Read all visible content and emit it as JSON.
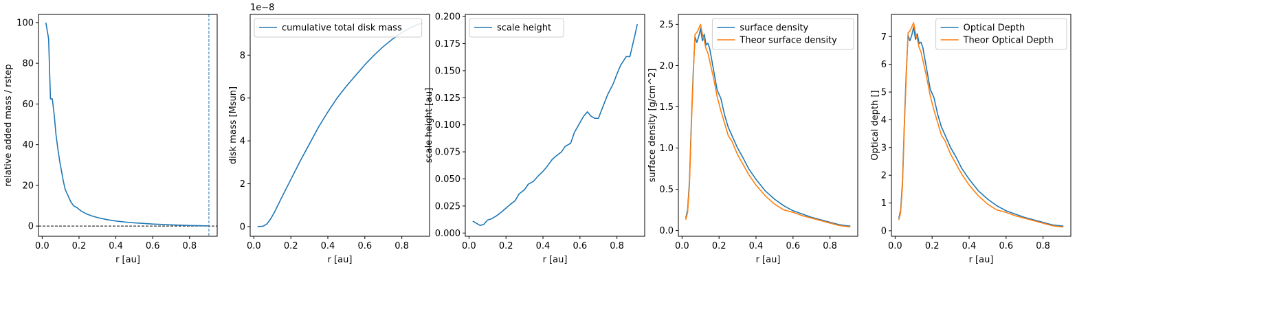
{
  "chart_data": [
    {
      "type": "line",
      "xlabel": "r [au]",
      "ylabel": "relative added mass / rstep",
      "xlim": [
        -0.02,
        0.95
      ],
      "ylim": [
        -5,
        104
      ],
      "xticks": [
        0.0,
        0.2,
        0.4,
        0.6,
        0.8
      ],
      "xtick_labels": [
        "0.0",
        "0.2",
        "0.4",
        "0.6",
        "0.8"
      ],
      "yticks": [
        0,
        20,
        40,
        60,
        80,
        100
      ],
      "ytick_labels": [
        "0",
        "20",
        "40",
        "60",
        "80",
        "100"
      ],
      "legend": null,
      "hlines": [
        {
          "y": 0,
          "style": "dashed",
          "color": "#000000"
        }
      ],
      "vlines": [
        {
          "x": 0.905,
          "style": "dashed",
          "color": "#1f77b4"
        }
      ],
      "series": [
        {
          "color": "#1f77b4",
          "x": [
            0.02,
            0.035,
            0.045,
            0.055,
            0.065,
            0.075,
            0.085,
            0.095,
            0.105,
            0.115,
            0.125,
            0.14,
            0.155,
            0.17,
            0.19,
            0.21,
            0.24,
            0.27,
            0.3,
            0.35,
            0.4,
            0.45,
            0.5,
            0.55,
            0.6,
            0.65,
            0.7,
            0.75,
            0.8,
            0.85,
            0.9
          ],
          "y": [
            100,
            92,
            62.5,
            62.5,
            55,
            45,
            38,
            32,
            27,
            22,
            18,
            15,
            12,
            10,
            9,
            7.5,
            6,
            5,
            4.2,
            3.2,
            2.5,
            2.0,
            1.6,
            1.3,
            1.0,
            0.8,
            0.6,
            0.45,
            0.3,
            0.2,
            0.1
          ]
        }
      ]
    },
    {
      "type": "line",
      "xlabel": "r [au]",
      "ylabel": "disk mass [Msun]",
      "offset_text": "1e−8",
      "xlim": [
        -0.02,
        0.95
      ],
      "ylim": [
        -0.45,
        9.9
      ],
      "xticks": [
        0.0,
        0.2,
        0.4,
        0.6,
        0.8
      ],
      "xtick_labels": [
        "0.0",
        "0.2",
        "0.4",
        "0.6",
        "0.8"
      ],
      "yticks": [
        0,
        2,
        4,
        6,
        8
      ],
      "ytick_labels": [
        "0",
        "2",
        "4",
        "6",
        "8"
      ],
      "legend": {
        "location": "upper left",
        "entries": [
          "cumulative total disk mass"
        ]
      },
      "series": [
        {
          "name": "cumulative total disk mass",
          "color": "#1f77b4",
          "x": [
            0.02,
            0.05,
            0.07,
            0.09,
            0.11,
            0.13,
            0.15,
            0.2,
            0.25,
            0.3,
            0.35,
            0.4,
            0.45,
            0.5,
            0.55,
            0.6,
            0.65,
            0.7,
            0.75,
            0.8,
            0.85,
            0.91
          ],
          "y": [
            0.0,
            0.02,
            0.12,
            0.35,
            0.65,
            1.0,
            1.35,
            2.2,
            3.05,
            3.85,
            4.65,
            5.35,
            6.0,
            6.55,
            7.05,
            7.55,
            8.0,
            8.4,
            8.75,
            9.05,
            9.3,
            9.5
          ]
        }
      ]
    },
    {
      "type": "line",
      "xlabel": "r [au]",
      "ylabel": "scale height [au]",
      "xlim": [
        -0.02,
        0.95
      ],
      "ylim": [
        -0.003,
        0.202
      ],
      "xticks": [
        0.0,
        0.2,
        0.4,
        0.6,
        0.8
      ],
      "xtick_labels": [
        "0.0",
        "0.2",
        "0.4",
        "0.6",
        "0.8"
      ],
      "yticks": [
        0.0,
        0.025,
        0.05,
        0.075,
        0.1,
        0.125,
        0.15,
        0.175,
        0.2
      ],
      "ytick_labels": [
        "0.000",
        "0.025",
        "0.050",
        "0.075",
        "0.100",
        "0.125",
        "0.150",
        "0.175",
        "0.200"
      ],
      "legend": {
        "location": "upper left",
        "entries": [
          "scale height"
        ]
      },
      "series": [
        {
          "name": "scale height",
          "color": "#1f77b4",
          "x": [
            0.02,
            0.04,
            0.06,
            0.08,
            0.1,
            0.12,
            0.15,
            0.18,
            0.2,
            0.22,
            0.25,
            0.27,
            0.3,
            0.32,
            0.35,
            0.37,
            0.4,
            0.42,
            0.45,
            0.47,
            0.5,
            0.52,
            0.55,
            0.57,
            0.6,
            0.62,
            0.64,
            0.66,
            0.68,
            0.7,
            0.72,
            0.75,
            0.78,
            0.8,
            0.82,
            0.85,
            0.87,
            0.9,
            0.91
          ],
          "y": [
            0.011,
            0.009,
            0.007,
            0.008,
            0.012,
            0.013,
            0.016,
            0.02,
            0.023,
            0.026,
            0.03,
            0.036,
            0.04,
            0.045,
            0.048,
            0.052,
            0.057,
            0.061,
            0.068,
            0.071,
            0.075,
            0.08,
            0.083,
            0.093,
            0.102,
            0.108,
            0.112,
            0.108,
            0.106,
            0.106,
            0.115,
            0.128,
            0.138,
            0.147,
            0.155,
            0.163,
            0.163,
            0.185,
            0.193
          ]
        }
      ]
    },
    {
      "type": "line",
      "xlabel": "r [au]",
      "ylabel": "surface density [g/cm^2]",
      "xlim": [
        -0.02,
        0.95
      ],
      "ylim": [
        -0.07,
        2.62
      ],
      "xticks": [
        0.0,
        0.2,
        0.4,
        0.6,
        0.8
      ],
      "xtick_labels": [
        "0.0",
        "0.2",
        "0.4",
        "0.6",
        "0.8"
      ],
      "yticks": [
        0.0,
        0.5,
        1.0,
        1.5,
        2.0,
        2.5
      ],
      "ytick_labels": [
        "0.0",
        "0.5",
        "1.0",
        "1.5",
        "2.0",
        "2.5"
      ],
      "legend": {
        "location": "upper right",
        "entries": [
          "surface density",
          "Theor surface density"
        ]
      },
      "series": [
        {
          "name": "surface density",
          "color": "#1f77b4",
          "x": [
            0.02,
            0.03,
            0.04,
            0.05,
            0.06,
            0.07,
            0.08,
            0.09,
            0.1,
            0.11,
            0.12,
            0.13,
            0.14,
            0.15,
            0.17,
            0.19,
            0.21,
            0.23,
            0.25,
            0.27,
            0.3,
            0.33,
            0.36,
            0.4,
            0.45,
            0.5,
            0.55,
            0.6,
            0.65,
            0.7,
            0.75,
            0.8,
            0.85,
            0.9,
            0.91
          ],
          "y": [
            0.15,
            0.25,
            0.6,
            1.3,
            1.9,
            2.35,
            2.28,
            2.35,
            2.45,
            2.3,
            2.38,
            2.25,
            2.27,
            2.2,
            1.95,
            1.7,
            1.6,
            1.4,
            1.25,
            1.15,
            1.0,
            0.88,
            0.75,
            0.62,
            0.48,
            0.38,
            0.3,
            0.24,
            0.2,
            0.16,
            0.13,
            0.1,
            0.07,
            0.055,
            0.055
          ]
        },
        {
          "name": "Theor surface density",
          "color": "#ff7f0e",
          "x": [
            0.02,
            0.03,
            0.04,
            0.05,
            0.06,
            0.07,
            0.08,
            0.09,
            0.1,
            0.11,
            0.12,
            0.13,
            0.14,
            0.15,
            0.17,
            0.19,
            0.21,
            0.23,
            0.25,
            0.27,
            0.3,
            0.33,
            0.36,
            0.4,
            0.45,
            0.5,
            0.55,
            0.6,
            0.65,
            0.7,
            0.75,
            0.8,
            0.85,
            0.9,
            0.91
          ],
          "y": [
            0.13,
            0.22,
            0.55,
            1.25,
            1.85,
            2.38,
            2.4,
            2.45,
            2.5,
            2.38,
            2.3,
            2.2,
            2.15,
            2.05,
            1.85,
            1.62,
            1.45,
            1.3,
            1.15,
            1.08,
            0.92,
            0.8,
            0.68,
            0.55,
            0.42,
            0.32,
            0.25,
            0.22,
            0.18,
            0.15,
            0.12,
            0.09,
            0.06,
            0.045,
            0.045
          ]
        }
      ]
    },
    {
      "type": "line",
      "xlabel": "r [au]",
      "ylabel": "Optical depth []",
      "xlim": [
        -0.02,
        0.95
      ],
      "ylim": [
        -0.2,
        7.8
      ],
      "xticks": [
        0.0,
        0.2,
        0.4,
        0.6,
        0.8
      ],
      "xtick_labels": [
        "0.0",
        "0.2",
        "0.4",
        "0.6",
        "0.8"
      ],
      "yticks": [
        0,
        1,
        2,
        3,
        4,
        5,
        6,
        7
      ],
      "ytick_labels": [
        "0",
        "1",
        "2",
        "3",
        "4",
        "5",
        "6",
        "7"
      ],
      "legend": {
        "location": "upper right",
        "entries": [
          "Optical Depth",
          "Theor Optical Depth"
        ]
      },
      "series": [
        {
          "name": "Optical Depth",
          "color": "#1f77b4",
          "x": [
            0.02,
            0.03,
            0.04,
            0.05,
            0.06,
            0.07,
            0.08,
            0.09,
            0.1,
            0.11,
            0.12,
            0.13,
            0.14,
            0.15,
            0.17,
            0.19,
            0.21,
            0.23,
            0.25,
            0.27,
            0.3,
            0.33,
            0.36,
            0.4,
            0.45,
            0.5,
            0.55,
            0.6,
            0.65,
            0.7,
            0.75,
            0.8,
            0.85,
            0.9,
            0.91
          ],
          "y": [
            0.45,
            0.75,
            1.8,
            3.9,
            5.7,
            7.05,
            6.85,
            7.05,
            7.35,
            6.9,
            7.1,
            6.75,
            6.8,
            6.6,
            5.85,
            5.1,
            4.8,
            4.2,
            3.75,
            3.45,
            3.0,
            2.65,
            2.25,
            1.86,
            1.44,
            1.14,
            0.9,
            0.72,
            0.6,
            0.48,
            0.39,
            0.3,
            0.21,
            0.17,
            0.17
          ]
        },
        {
          "name": "Theor Optical Depth",
          "color": "#ff7f0e",
          "x": [
            0.02,
            0.03,
            0.04,
            0.05,
            0.06,
            0.07,
            0.08,
            0.09,
            0.1,
            0.11,
            0.12,
            0.13,
            0.14,
            0.15,
            0.17,
            0.19,
            0.21,
            0.23,
            0.25,
            0.27,
            0.3,
            0.33,
            0.36,
            0.4,
            0.45,
            0.5,
            0.55,
            0.6,
            0.65,
            0.7,
            0.75,
            0.8,
            0.85,
            0.9,
            0.91
          ],
          "y": [
            0.39,
            0.66,
            1.65,
            3.75,
            5.55,
            7.14,
            7.2,
            7.35,
            7.5,
            7.14,
            6.9,
            6.6,
            6.45,
            6.15,
            5.55,
            4.86,
            4.35,
            3.9,
            3.45,
            3.24,
            2.76,
            2.4,
            2.04,
            1.65,
            1.26,
            0.96,
            0.75,
            0.66,
            0.54,
            0.45,
            0.36,
            0.27,
            0.18,
            0.14,
            0.14
          ]
        }
      ]
    }
  ]
}
